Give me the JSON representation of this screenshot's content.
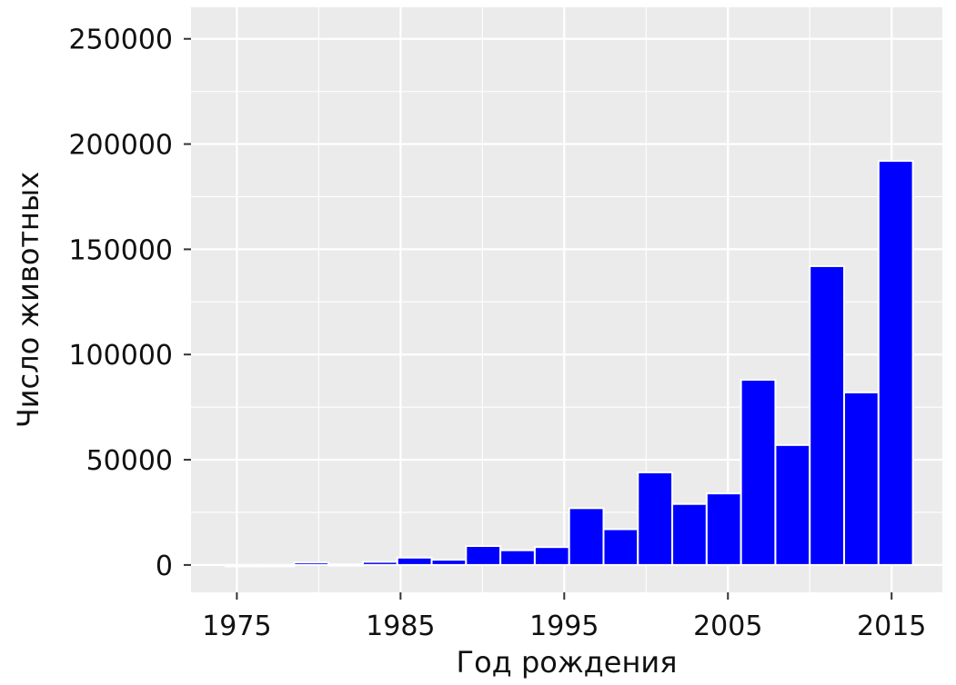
{
  "chart_data": {
    "type": "bar",
    "xlabel": "Год рождения",
    "ylabel": "Число животных",
    "xlim": [
      1972.2,
      1018
    ],
    "ylim": [
      -13000,
      265000
    ],
    "x_ticks": [
      1975,
      1985,
      1995,
      2005,
      2015
    ],
    "y_ticks": [
      0,
      50000,
      100000,
      150000,
      200000,
      250000
    ],
    "y_tick_labels": [
      "0",
      "50000",
      "100000",
      "150000",
      "200000",
      "250000"
    ],
    "grid": true,
    "panel_color": "#ebebeb",
    "grid_color": "#ffffff",
    "bar_color": "#0000ff",
    "bar_outline": "#ffffff",
    "bin_width": 2.1,
    "bins": [
      {
        "start": 1974.3,
        "value": 0
      },
      {
        "start": 1976.4,
        "value": 0
      },
      {
        "start": 1978.5,
        "value": 1200
      },
      {
        "start": 1980.6,
        "value": 300
      },
      {
        "start": 1982.7,
        "value": 1500
      },
      {
        "start": 1984.8,
        "value": 3500
      },
      {
        "start": 1986.9,
        "value": 2500
      },
      {
        "start": 1989.0,
        "value": 9000
      },
      {
        "start": 1991.1,
        "value": 7000
      },
      {
        "start": 1993.2,
        "value": 8500
      },
      {
        "start": 1995.3,
        "value": 27000
      },
      {
        "start": 1997.4,
        "value": 17000
      },
      {
        "start": 1999.5,
        "value": 44000
      },
      {
        "start": 2001.6,
        "value": 29000
      },
      {
        "start": 2003.7,
        "value": 34000
      },
      {
        "start": 2005.8,
        "value": 88000
      },
      {
        "start": 2007.9,
        "value": 57000
      },
      {
        "start": 2010.0,
        "value": 142000
      },
      {
        "start": 2012.1,
        "value": 82000
      },
      {
        "start": 2014.2,
        "value": 192000
      }
    ]
  }
}
